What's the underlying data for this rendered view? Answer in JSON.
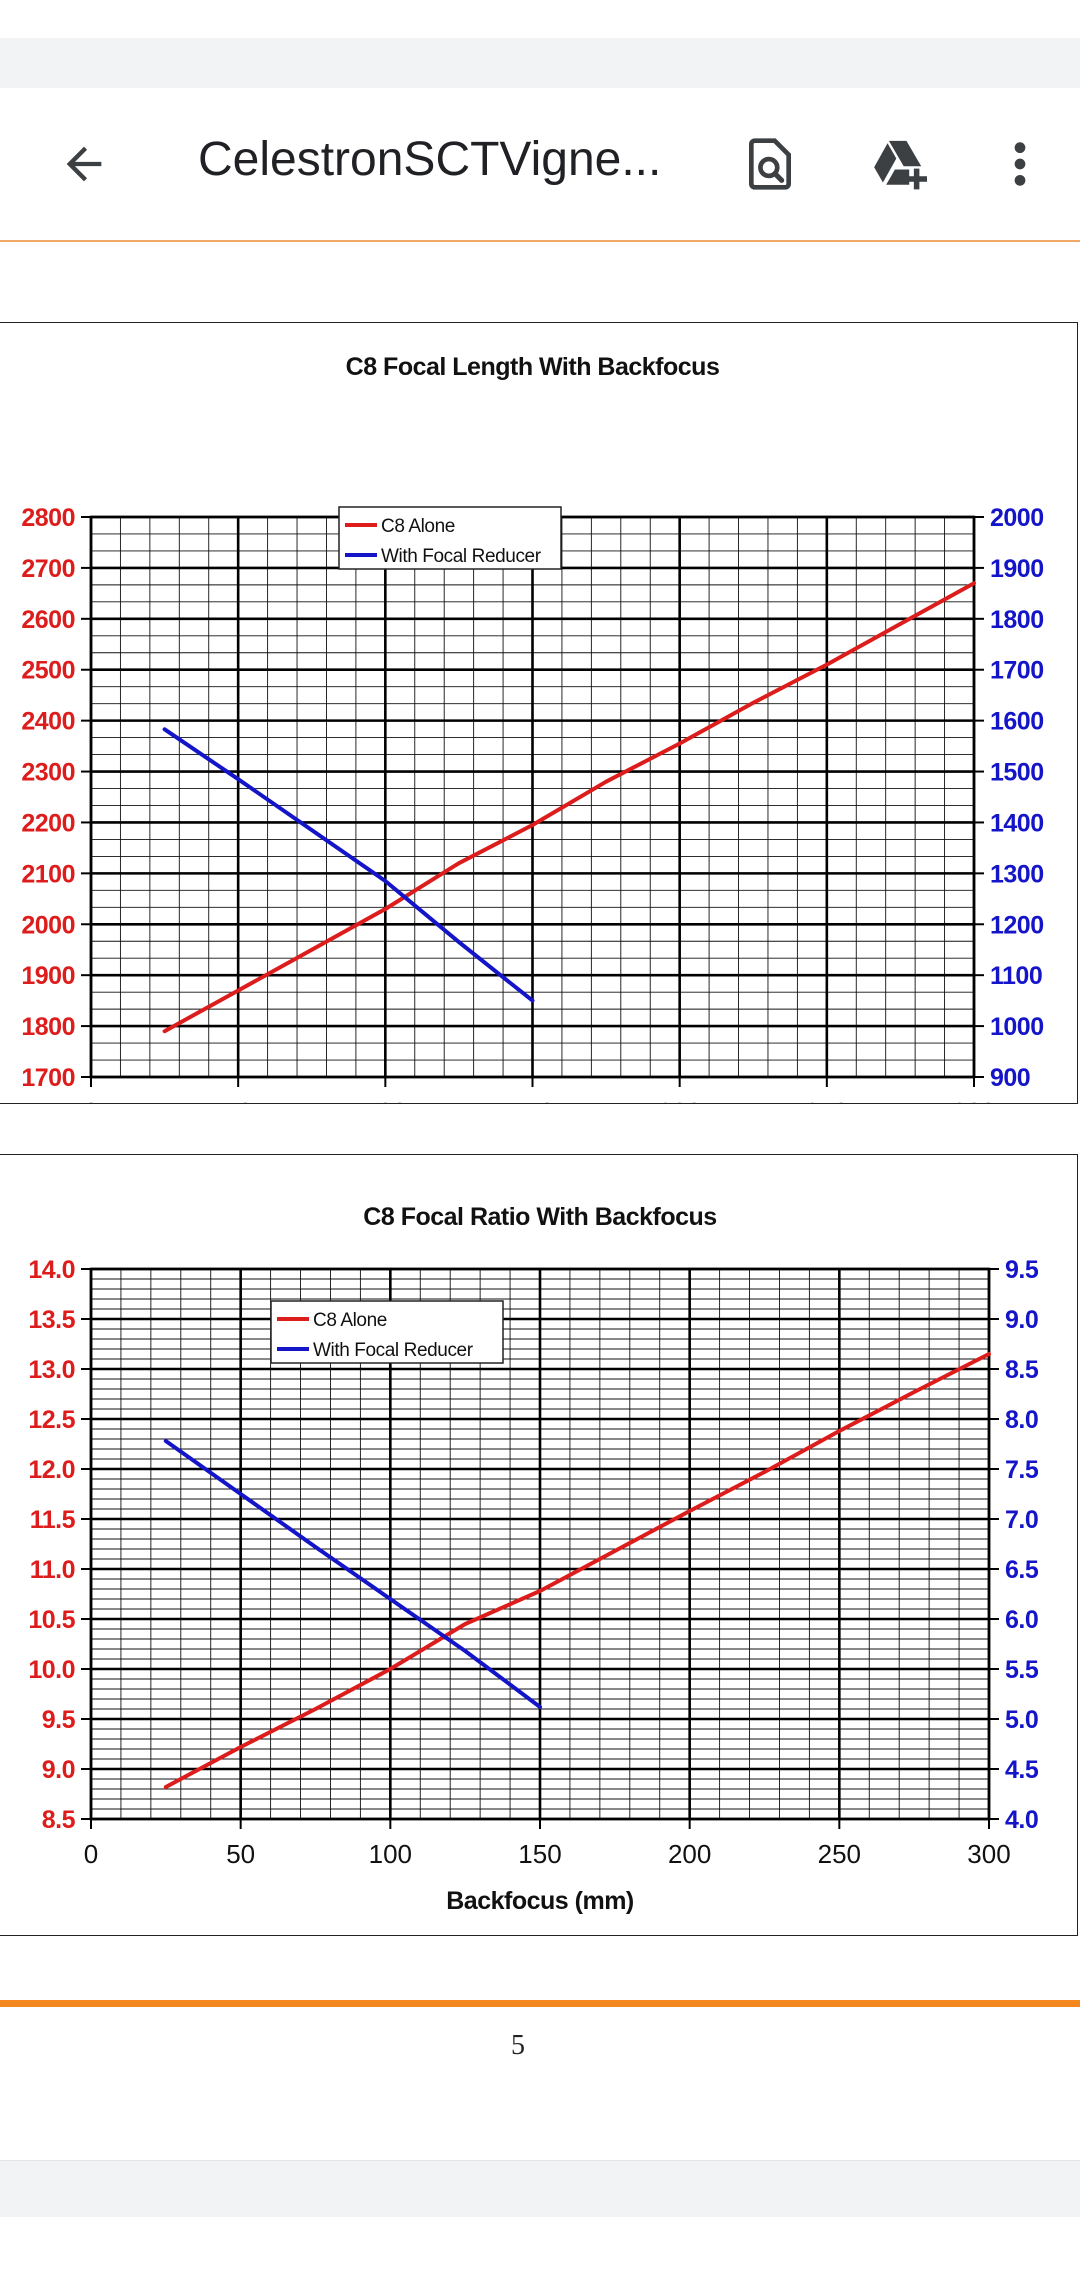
{
  "toolbar": {
    "title": "CelestronSCTVigne...",
    "icons": {
      "back": "arrow-left-icon",
      "find": "find-in-document-icon",
      "drive": "add-to-drive-icon",
      "more": "more-vertical-icon"
    },
    "accent_color": "#f0a868"
  },
  "page": {
    "number": "5",
    "divider_color": "#f5871f"
  },
  "chart_data": [
    {
      "type": "line",
      "title": "C8 Focal Length With Backfocus",
      "xlabel": "Backfocus (mm)",
      "ylabel": "",
      "ylabel_right": "",
      "xlim": [
        0,
        300
      ],
      "ylim": [
        1700,
        2800
      ],
      "ylim_right": [
        900,
        2000
      ],
      "x_ticks": [
        "0",
        "50",
        "100",
        "150",
        "200",
        "250",
        "300"
      ],
      "y_ticks": [
        "1700",
        "1800",
        "1900",
        "2000",
        "2100",
        "2200",
        "2300",
        "2400",
        "2500",
        "2600",
        "2700",
        "2800"
      ],
      "y_ticks_right": [
        "900",
        "1000",
        "1100",
        "1200",
        "1300",
        "1400",
        "1500",
        "1600",
        "1700",
        "1800",
        "1900",
        "2000"
      ],
      "grid": true,
      "legend_position": "top-center",
      "series": [
        {
          "name": "C8 Alone",
          "axis": "left",
          "color": "#dd1c1c",
          "x": [
            25,
            50,
            75,
            100,
            125,
            150,
            175,
            200,
            225,
            250,
            275,
            300
          ],
          "y": [
            1790,
            1870,
            1950,
            2030,
            2120,
            2195,
            2280,
            2355,
            2435,
            2510,
            2590,
            2670
          ]
        },
        {
          "name": "With Focal Reducer",
          "axis": "right",
          "color": "#1414c8",
          "x": [
            25,
            50,
            75,
            100,
            125,
            150
          ],
          "y": [
            1583,
            1485,
            1385,
            1285,
            1165,
            1050
          ]
        }
      ]
    },
    {
      "type": "line",
      "title": "C8 Focal Ratio With Backfocus",
      "xlabel": "Backfocus (mm)",
      "ylabel": "",
      "ylabel_right": "",
      "xlim": [
        0,
        300
      ],
      "ylim": [
        8.5,
        14.0
      ],
      "ylim_right": [
        4.0,
        9.5
      ],
      "x_ticks": [
        "0",
        "50",
        "100",
        "150",
        "200",
        "250",
        "300"
      ],
      "y_ticks": [
        "8.5",
        "9.0",
        "9.5",
        "10.0",
        "10.5",
        "11.0",
        "11.5",
        "12.0",
        "12.5",
        "13.0",
        "13.5",
        "14.0"
      ],
      "y_ticks_right": [
        "4.0",
        "4.5",
        "5.0",
        "5.5",
        "6.0",
        "6.5",
        "7.0",
        "7.5",
        "8.0",
        "8.5",
        "9.0",
        "9.5"
      ],
      "grid": true,
      "legend_position": "top-left",
      "series": [
        {
          "name": "C8 Alone",
          "axis": "left",
          "color": "#dd1c1c",
          "x": [
            25,
            50,
            75,
            100,
            125,
            150,
            175,
            200,
            225,
            250,
            275,
            300
          ],
          "y": [
            8.82,
            9.22,
            9.6,
            10.0,
            10.45,
            10.78,
            11.18,
            11.58,
            11.97,
            12.38,
            12.77,
            13.15
          ]
        },
        {
          "name": "With Focal Reducer",
          "axis": "right",
          "color": "#1414c8",
          "x": [
            25,
            50,
            75,
            100,
            125,
            150
          ],
          "y": [
            7.78,
            7.25,
            6.72,
            6.2,
            5.68,
            5.12
          ]
        }
      ]
    }
  ]
}
